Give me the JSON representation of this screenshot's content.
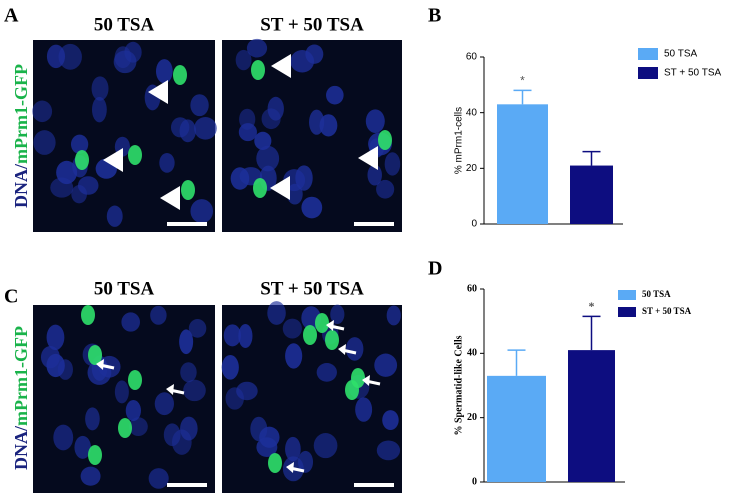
{
  "panels": {
    "A": {
      "letter": "A",
      "image_titles": [
        "50 TSA",
        "ST + 50 TSA"
      ],
      "stain_label": [
        "DNA/",
        "mPrm1-GFP"
      ]
    },
    "B": {
      "letter": "B"
    },
    "C": {
      "letter": "C",
      "image_titles": [
        "50 TSA",
        "ST + 50 TSA"
      ],
      "stain_label": [
        "DNA/",
        "mPrm1-GFP"
      ]
    },
    "D": {
      "letter": "D"
    }
  },
  "chart_data": [
    {
      "type": "bar",
      "ylabel": "% mPrm1-cells",
      "ylim": [
        0,
        60
      ],
      "yticks": [
        0,
        20,
        40,
        60
      ],
      "legend": "top-right",
      "series": [
        {
          "name": "50 TSA",
          "color": "#5aaaf5",
          "values": [
            43
          ],
          "errors": [
            5
          ],
          "annotation": "*"
        },
        {
          "name": "ST + 50 TSA",
          "color": "#0d0d80",
          "values": [
            21
          ],
          "errors": [
            5
          ]
        }
      ]
    },
    {
      "type": "bar",
      "ylabel": "% Spermatid-like Cells",
      "ylim": [
        0,
        60
      ],
      "yticks": [
        0,
        20,
        40,
        60
      ],
      "legend": "top-right",
      "series": [
        {
          "name": "50 TSA",
          "color": "#5aaaf5",
          "values": [
            33
          ],
          "errors": [
            8
          ]
        },
        {
          "name": "ST + 50 TSA",
          "color": "#0d0d80",
          "values": [
            41
          ],
          "errors": [
            10.5
          ],
          "annotation": "*"
        }
      ]
    }
  ]
}
